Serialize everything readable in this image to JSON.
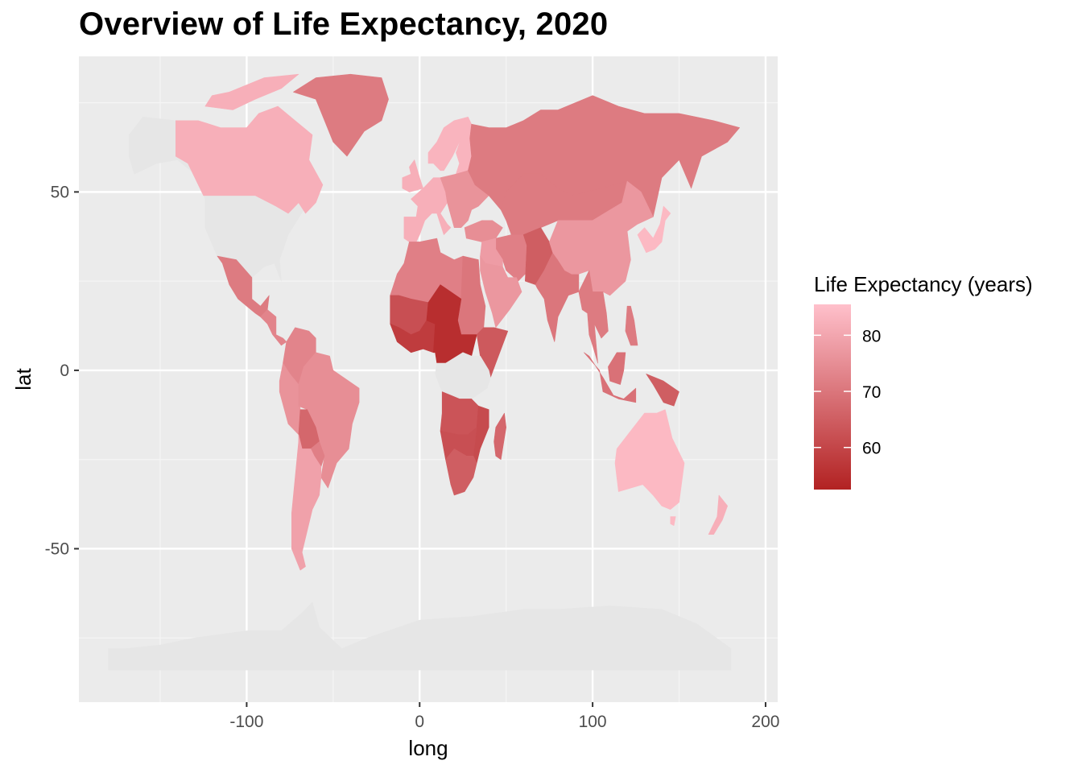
{
  "title": "Overview of Life Expectancy, 2020",
  "chart_data": {
    "type": "choropleth-map",
    "title": "Overview of Life Expectancy, 2020",
    "xlabel": "long",
    "ylabel": "lat",
    "xlim": [
      -197,
      207
    ],
    "ylim": [
      -93,
      88
    ],
    "x_ticks": [
      -100,
      0,
      100,
      200
    ],
    "x_tick_labels": [
      "-100",
      "0",
      "100",
      "200"
    ],
    "y_ticks": [
      -50,
      0,
      50
    ],
    "y_tick_labels": [
      "-50",
      "0",
      "50"
    ],
    "grid": true,
    "no_data_color": "#e6e6e6",
    "panel_color": "#ebebeb",
    "legend": {
      "title": "Life Expectancy (years)",
      "position": "right",
      "range": [
        52.5,
        85.5
      ],
      "low_color": "#b22222",
      "high_color": "#ffc0cb",
      "breaks": [
        60,
        70,
        80
      ],
      "labels": [
        "60",
        "70",
        "80"
      ]
    },
    "regions": [
      {
        "name": "Canada",
        "value": 82
      },
      {
        "name": "Greenland",
        "value": 71
      },
      {
        "name": "Mexico",
        "value": 71
      },
      {
        "name": "Central America",
        "value": 73
      },
      {
        "name": "Colombia / Venezuela",
        "value": 73
      },
      {
        "name": "Brazil",
        "value": 75
      },
      {
        "name": "Peru / Ecuador",
        "value": 76
      },
      {
        "name": "Bolivia",
        "value": 67
      },
      {
        "name": "Paraguay",
        "value": 72
      },
      {
        "name": "Chile / Argentina",
        "value": 79
      },
      {
        "name": "Western Europe",
        "value": 82
      },
      {
        "name": "Iberia",
        "value": 82
      },
      {
        "name": "Scandinavia",
        "value": 83
      },
      {
        "name": "Eastern Europe",
        "value": 76
      },
      {
        "name": "Russia",
        "value": 71
      },
      {
        "name": "Turkey / Caucasus",
        "value": 75
      },
      {
        "name": "North Africa",
        "value": 72
      },
      {
        "name": "Egypt / Sudan",
        "value": 70
      },
      {
        "name": "Sahel West",
        "value": 62
      },
      {
        "name": "Sahel Central",
        "value": 55
      },
      {
        "name": "West Africa coast",
        "value": 58
      },
      {
        "name": "Ethiopia / Somalia",
        "value": 64
      },
      {
        "name": "Middle East",
        "value": 78
      },
      {
        "name": "Arabia",
        "value": 77
      },
      {
        "name": "Iran / Central Asia",
        "value": 72
      },
      {
        "name": "Afghanistan / Pakistan",
        "value": 65
      },
      {
        "name": "India",
        "value": 70
      },
      {
        "name": "China",
        "value": 77
      },
      {
        "name": "Mongolia / Kazakhstan",
        "value": 71
      },
      {
        "name": "Japan / Korea",
        "value": 84
      },
      {
        "name": "Southeast Asia",
        "value": 71
      },
      {
        "name": "Philippines",
        "value": 71
      },
      {
        "name": "Indonesia",
        "value": 69
      },
      {
        "name": "New Guinea",
        "value": 65
      },
      {
        "name": "Southern Africa central",
        "value": 62
      },
      {
        "name": "Angola / Zambia",
        "value": 63
      },
      {
        "name": "Mozambique",
        "value": 61
      },
      {
        "name": "South Africa",
        "value": 65
      },
      {
        "name": "Madagascar",
        "value": 67
      },
      {
        "name": "Australia",
        "value": 84
      },
      {
        "name": "New Zealand",
        "value": 82
      },
      {
        "name": "Alaska / USA",
        "value": null
      },
      {
        "name": "Antarctica",
        "value": null
      },
      {
        "name": "Congo region",
        "value": null
      }
    ]
  }
}
